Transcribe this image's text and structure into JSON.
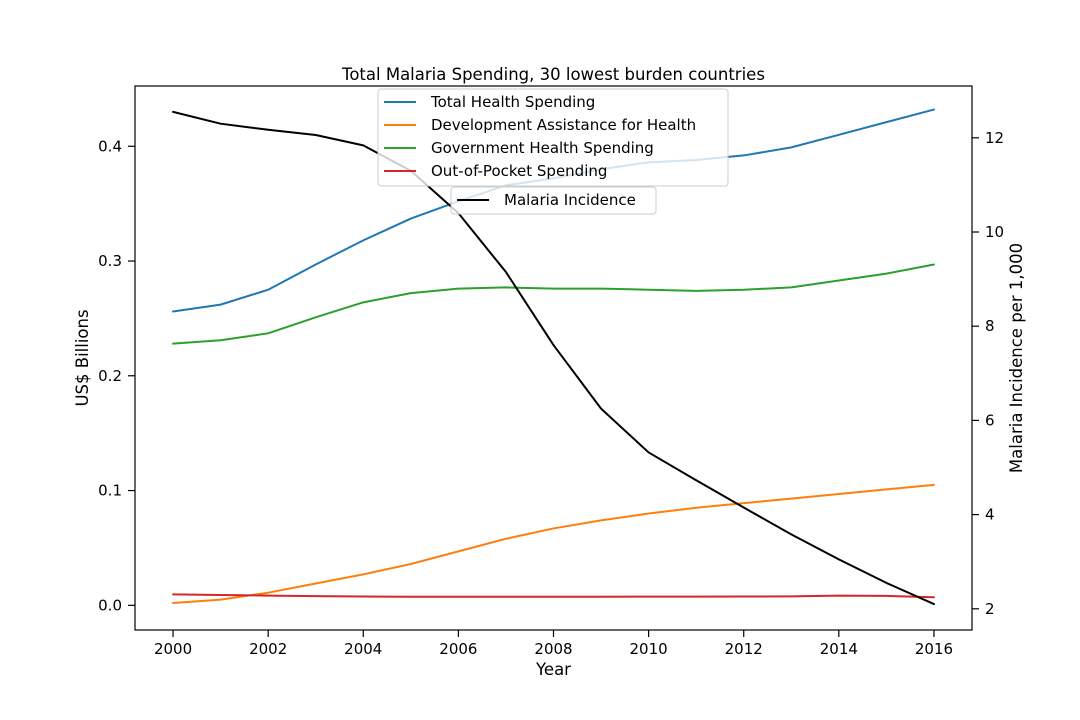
{
  "chart_data": {
    "type": "line",
    "title": "Total Malaria Spending, 30 lowest burden countries",
    "xlabel": "Year",
    "ylabel": "US$ Billions",
    "y2label": "Malaria Incidence per 1,000",
    "xlim": [
      1999.2,
      2016.8
    ],
    "ylim": [
      -0.0215,
      0.4525
    ],
    "y2lim": [
      1.55,
      13.1
    ],
    "x_ticks": [
      2000,
      2002,
      2004,
      2006,
      2008,
      2010,
      2012,
      2014,
      2016
    ],
    "y_ticks": [
      0.0,
      0.1,
      0.2,
      0.3,
      0.4
    ],
    "y_tick_labels": [
      "0.0",
      "0.1",
      "0.2",
      "0.3",
      "0.4"
    ],
    "y2_ticks": [
      2,
      4,
      6,
      8,
      10,
      12
    ],
    "grid": false,
    "legend_placement": "top-center",
    "x": [
      2000,
      2001,
      2002,
      2003,
      2004,
      2005,
      2006,
      2007,
      2008,
      2009,
      2010,
      2011,
      2012,
      2013,
      2014,
      2015,
      2016
    ],
    "series": [
      {
        "name": "Total Health Spending",
        "color": "#1f77b4",
        "axis": "left",
        "values": [
          0.256,
          0.262,
          0.275,
          0.297,
          0.318,
          0.337,
          0.352,
          0.366,
          0.372,
          0.38,
          0.386,
          0.388,
          0.392,
          0.399,
          0.41,
          0.421,
          0.432
        ]
      },
      {
        "name": "Development Assistance for Health",
        "color": "#ff7f0e",
        "axis": "left",
        "values": [
          0.002,
          0.005,
          0.011,
          0.019,
          0.027,
          0.036,
          0.047,
          0.058,
          0.067,
          0.074,
          0.08,
          0.085,
          0.089,
          0.093,
          0.097,
          0.101,
          0.105
        ]
      },
      {
        "name": "Government Health Spending",
        "color": "#2ca02c",
        "axis": "left",
        "values": [
          0.228,
          0.231,
          0.237,
          0.251,
          0.264,
          0.272,
          0.276,
          0.277,
          0.276,
          0.276,
          0.275,
          0.274,
          0.275,
          0.277,
          0.283,
          0.289,
          0.297
        ]
      },
      {
        "name": "Out-of-Pocket Spending",
        "color": "#d62728",
        "axis": "left",
        "values": [
          0.0095,
          0.009,
          0.0085,
          0.008,
          0.0077,
          0.0075,
          0.0075,
          0.0075,
          0.0075,
          0.0075,
          0.0076,
          0.0076,
          0.0077,
          0.0078,
          0.0085,
          0.0082,
          0.007
        ]
      },
      {
        "name": "Malaria Incidence",
        "color": "#000000",
        "axis": "right",
        "values": [
          12.55,
          12.3,
          12.17,
          12.06,
          11.84,
          11.3,
          10.4,
          9.15,
          7.6,
          6.25,
          5.32,
          4.73,
          4.15,
          3.58,
          3.05,
          2.55,
          2.1
        ]
      }
    ]
  }
}
